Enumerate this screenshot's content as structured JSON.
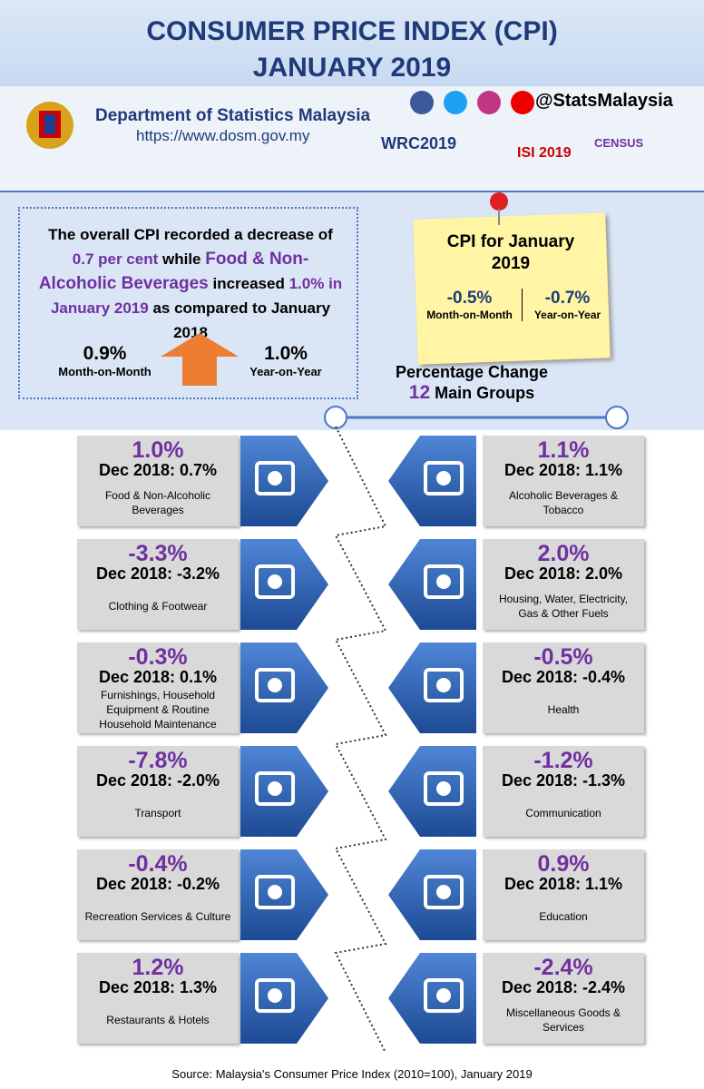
{
  "header": {
    "title": "CONSUMER PRICE INDEX (CPI)",
    "subtitle": "JANUARY 2019"
  },
  "org": {
    "name": "Department of Statistics Malaysia",
    "url": "https://www.dosm.gov.my",
    "handle": "@StatsMalaysia",
    "logos": [
      "WRC2019",
      "ISI 2019",
      "CENSUS"
    ]
  },
  "summary": {
    "parts": [
      "The overall CPI recorded a decrease of",
      "0.7 per cent",
      "while",
      "Food & Non-Alcoholic Beverages",
      "increased",
      "1.0% in January 2019",
      "as compared to January 2018"
    ],
    "mom": {
      "value": "0.9%",
      "label": "Month-on-Month"
    },
    "yoy": {
      "value": "1.0%",
      "label": "Year-on-Year"
    }
  },
  "note": {
    "title": "CPI for January 2019",
    "mom": {
      "value": "-0.5%",
      "label": "Month-on-Month"
    },
    "yoy": {
      "value": "-0.7%",
      "label": "Year-on-Year"
    }
  },
  "groups_heading": {
    "line1": "Percentage Change",
    "count": "12",
    "line2": "Main Groups"
  },
  "groups": [
    {
      "change": "1.0%",
      "dec": "Dec 2018: 0.7%",
      "name": "Food & Non-Alcoholic Beverages"
    },
    {
      "change": "1.1%",
      "dec": "Dec 2018: 1.1%",
      "name": "Alcoholic Beverages & Tobacco"
    },
    {
      "change": "-3.3%",
      "dec": "Dec 2018: -3.2%",
      "name": "Clothing & Footwear"
    },
    {
      "change": "2.0%",
      "dec": "Dec 2018: 2.0%",
      "name": "Housing, Water, Electricity, Gas & Other Fuels"
    },
    {
      "change": "-0.3%",
      "dec": "Dec 2018: 0.1%",
      "name": "Furnishings, Household Equipment & Routine Household Maintenance"
    },
    {
      "change": "-0.5%",
      "dec": "Dec 2018: -0.4%",
      "name": "Health"
    },
    {
      "change": "-7.8%",
      "dec": "Dec 2018: -2.0%",
      "name": "Transport"
    },
    {
      "change": "-1.2%",
      "dec": "Dec 2018: -1.3%",
      "name": "Communication"
    },
    {
      "change": "-0.4%",
      "dec": "Dec 2018: -0.2%",
      "name": "Recreation Services & Culture"
    },
    {
      "change": "0.9%",
      "dec": "Dec 2018: 1.1%",
      "name": "Education"
    },
    {
      "change": "1.2%",
      "dec": "Dec 2018: 1.3%",
      "name": "Restaurants & Hotels"
    },
    {
      "change": "-2.4%",
      "dec": "Dec 2018: -2.4%",
      "name": "Miscellaneous Goods & Services"
    }
  ],
  "footer": {
    "source": "Source: Malaysia's Consumer Price Index (2010=100),  January 2019"
  }
}
